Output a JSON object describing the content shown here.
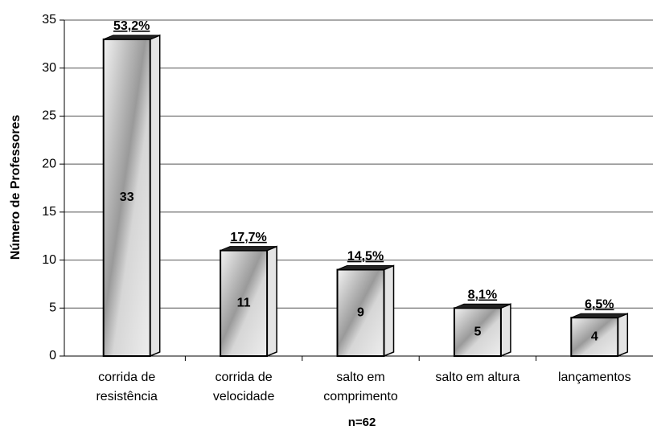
{
  "chart_data": {
    "type": "bar",
    "categories": [
      "corrida de\nresistência",
      "corrida de\nvelocidade",
      "salto em\ncomprimento",
      "salto em altura",
      "lançamentos"
    ],
    "values": [
      33,
      11,
      9,
      5,
      4
    ],
    "annotations": [
      "53,2%",
      "17,7%",
      "14,5%",
      "8,1%",
      "6,5%"
    ],
    "ylabel": "Número de Professores",
    "xlabel": "n=62",
    "ylim": [
      0,
      35
    ],
    "yticks": [
      0,
      5,
      10,
      15,
      20,
      25,
      30,
      35
    ],
    "grid": true,
    "color": "#b8b8b8"
  }
}
